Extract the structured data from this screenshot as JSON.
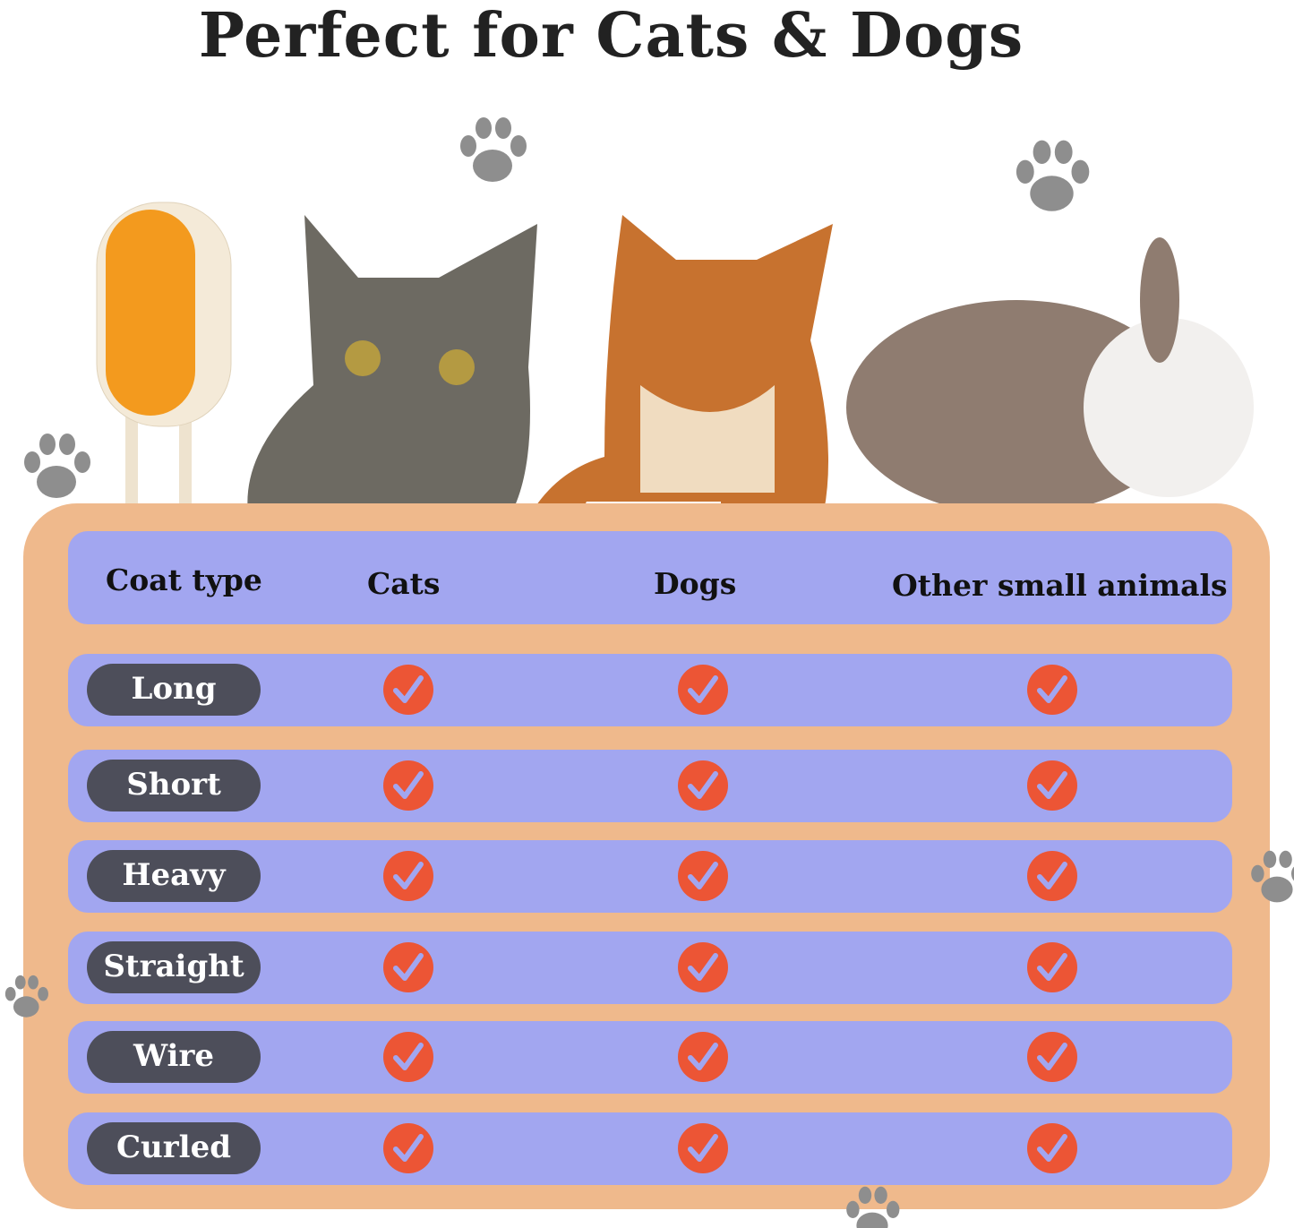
{
  "title": "Perfect for Cats & Dogs",
  "table": {
    "headers": [
      "Coat type",
      "Cats",
      "Dogs",
      "Other small animals"
    ],
    "rows": [
      {
        "coat": "Long",
        "cats": true,
        "dogs": true,
        "other": true
      },
      {
        "coat": "Short",
        "cats": true,
        "dogs": true,
        "other": true
      },
      {
        "coat": "Heavy",
        "cats": true,
        "dogs": true,
        "other": true
      },
      {
        "coat": "Straight",
        "cats": true,
        "dogs": true,
        "other": true
      },
      {
        "coat": "Wire",
        "cats": true,
        "dogs": true,
        "other": true
      },
      {
        "coat": "Curled",
        "cats": true,
        "dogs": true,
        "other": true
      }
    ]
  },
  "colors": {
    "board": "#efb98c",
    "band": "#a2a6f0",
    "pill": "#4d4e5a",
    "check": "#ec5535",
    "paw": "#8e8e8e"
  },
  "icons": [
    "paw-print-icon",
    "check-circle-icon"
  ]
}
